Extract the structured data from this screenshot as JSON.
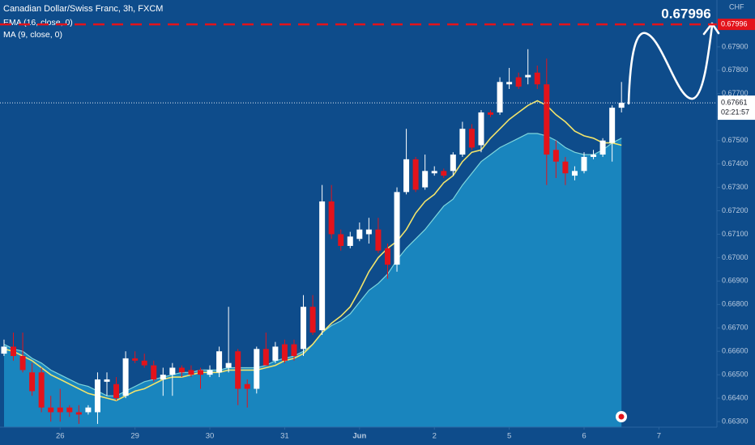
{
  "chart_data": {
    "type": "candlestick",
    "title": "Canadian Dollar/Swiss Franc, 3h, FXCM",
    "currency": "CHF",
    "up_color": "#ffffff",
    "down_color": "#e3131b",
    "candles": {
      "open": [
        0.6659,
        0.6662,
        0.6658,
        0.6651,
        0.6651,
        0.6636,
        0.6636,
        0.6636,
        0.6634,
        0.6634,
        0.6634,
        0.6647,
        0.6646,
        0.6641,
        0.6657,
        0.6656,
        0.6654,
        0.6648,
        0.665,
        0.6653,
        0.6652,
        0.6652,
        0.665,
        0.6651,
        0.6653,
        0.666,
        0.6646,
        0.6644,
        0.6661,
        0.6656,
        0.6663,
        0.6663,
        0.6661,
        0.6679,
        0.6669,
        0.6724,
        0.671,
        0.6705,
        0.6708,
        0.671,
        0.6712,
        0.6704,
        0.6697,
        0.6728,
        0.6742,
        0.673,
        0.6736,
        0.6737,
        0.6737,
        0.6744,
        0.6755,
        0.6748,
        0.6762,
        0.6762,
        0.6774,
        0.6777,
        0.6777,
        0.6779,
        0.6774,
        0.6746,
        0.6741,
        0.6735,
        0.6737,
        0.6743,
        0.6744,
        0.6749,
        0.6764
      ],
      "high": [
        0.6665,
        0.6668,
        0.6668,
        0.6655,
        0.6653,
        0.6641,
        0.6644,
        0.6637,
        0.6637,
        0.6637,
        0.6651,
        0.6651,
        0.6649,
        0.666,
        0.666,
        0.6659,
        0.6656,
        0.6653,
        0.6655,
        0.6654,
        0.6654,
        0.6653,
        0.6654,
        0.6662,
        0.6679,
        0.6661,
        0.6648,
        0.6662,
        0.6668,
        0.6664,
        0.6665,
        0.6665,
        0.6684,
        0.6684,
        0.6731,
        0.6731,
        0.6712,
        0.6711,
        0.6715,
        0.6717,
        0.6717,
        0.6706,
        0.673,
        0.6755,
        0.6743,
        0.6744,
        0.6739,
        0.6738,
        0.6745,
        0.6758,
        0.6757,
        0.6763,
        0.6763,
        0.6777,
        0.6781,
        0.6779,
        0.6789,
        0.6782,
        0.6785,
        0.675,
        0.6743,
        0.6739,
        0.6745,
        0.6746,
        0.6751,
        0.6765,
        0.6775
      ],
      "low": [
        0.6658,
        0.6656,
        0.6651,
        0.6641,
        0.6634,
        0.663,
        0.663,
        0.6632,
        0.6629,
        0.6633,
        0.6629,
        0.6641,
        0.6639,
        0.664,
        0.6655,
        0.6653,
        0.6647,
        0.6641,
        0.6641,
        0.6649,
        0.6649,
        0.6644,
        0.6649,
        0.6649,
        0.6651,
        0.6637,
        0.6636,
        0.6642,
        0.6654,
        0.6655,
        0.6655,
        0.6656,
        0.6658,
        0.6667,
        0.6667,
        0.6708,
        0.6703,
        0.6704,
        0.6707,
        0.6706,
        0.6702,
        0.6691,
        0.6694,
        0.6727,
        0.6728,
        0.6729,
        0.6735,
        0.6734,
        0.6735,
        0.6743,
        0.6746,
        0.6745,
        0.676,
        0.6761,
        0.6772,
        0.6772,
        0.6774,
        0.6772,
        0.6731,
        0.6734,
        0.6731,
        0.6733,
        0.6736,
        0.6742,
        0.6743,
        0.6741,
        0.6762
      ],
      "close": [
        0.6662,
        0.6658,
        0.6652,
        0.6643,
        0.6636,
        0.6634,
        0.6634,
        0.6634,
        0.6633,
        0.6636,
        0.6648,
        0.6648,
        0.664,
        0.6657,
        0.6656,
        0.6654,
        0.6648,
        0.665,
        0.6653,
        0.6651,
        0.665,
        0.665,
        0.6652,
        0.666,
        0.6655,
        0.6644,
        0.6644,
        0.6661,
        0.6654,
        0.6662,
        0.6656,
        0.6658,
        0.6679,
        0.6668,
        0.6724,
        0.671,
        0.6705,
        0.6709,
        0.6712,
        0.6712,
        0.6703,
        0.6697,
        0.6728,
        0.6742,
        0.6729,
        0.6737,
        0.6737,
        0.6735,
        0.6744,
        0.6755,
        0.6747,
        0.6762,
        0.6761,
        0.6775,
        0.6775,
        0.6773,
        0.6778,
        0.6774,
        0.6744,
        0.6741,
        0.6736,
        0.6737,
        0.6743,
        0.6744,
        0.675,
        0.6764,
        0.67661
      ]
    },
    "series": [
      {
        "name": "EMA (16, close, 0)",
        "style": "area",
        "color": "#7fd6dc",
        "fill": "#1b8cc3",
        "values": [
          0.6663,
          0.6661,
          0.666,
          0.6657,
          0.6655,
          0.6652,
          0.665,
          0.6648,
          0.6646,
          0.6645,
          0.6643,
          0.6641,
          0.6641,
          0.6643,
          0.6645,
          0.6647,
          0.6648,
          0.6649,
          0.665,
          0.6651,
          0.6651,
          0.6652,
          0.6652,
          0.6652,
          0.6653,
          0.6653,
          0.6653,
          0.6653,
          0.6654,
          0.6656,
          0.6657,
          0.6658,
          0.666,
          0.6663,
          0.6668,
          0.6671,
          0.6673,
          0.6676,
          0.6681,
          0.6686,
          0.6689,
          0.6693,
          0.6699,
          0.6704,
          0.6708,
          0.6712,
          0.6717,
          0.6722,
          0.6725,
          0.6731,
          0.6736,
          0.6741,
          0.6744,
          0.6747,
          0.6749,
          0.6751,
          0.6753,
          0.6753,
          0.6752,
          0.675,
          0.6747,
          0.6745,
          0.6744,
          0.6744,
          0.6746,
          0.6749,
          0.6751
        ]
      },
      {
        "name": "MA (9, close, 0)",
        "style": "line",
        "color": "#f2e46b",
        "values": [
          0.6661,
          0.666,
          0.6658,
          0.6656,
          0.6653,
          0.665,
          0.6648,
          0.6646,
          0.6644,
          0.6642,
          0.6641,
          0.664,
          0.6639,
          0.6641,
          0.6643,
          0.6644,
          0.6646,
          0.6648,
          0.6649,
          0.6649,
          0.665,
          0.6651,
          0.6651,
          0.6651,
          0.6652,
          0.6652,
          0.6652,
          0.6652,
          0.6653,
          0.6654,
          0.6656,
          0.6657,
          0.6659,
          0.6663,
          0.6668,
          0.6672,
          0.6675,
          0.6679,
          0.6686,
          0.6694,
          0.67,
          0.6704,
          0.6707,
          0.6712,
          0.6719,
          0.6724,
          0.6727,
          0.6732,
          0.6735,
          0.6741,
          0.6745,
          0.6746,
          0.6751,
          0.6755,
          0.6759,
          0.6762,
          0.6765,
          0.6767,
          0.6765,
          0.6761,
          0.6758,
          0.6754,
          0.6752,
          0.6751,
          0.6749,
          0.6749,
          0.6748
        ]
      }
    ],
    "ylim": [
      0.66276,
      0.681
    ],
    "yticks": [
      {
        "value": 0.663,
        "label": "0.66300"
      },
      {
        "value": 0.664,
        "label": "0.66400"
      },
      {
        "value": 0.665,
        "label": "0.66500"
      },
      {
        "value": 0.666,
        "label": "0.66600"
      },
      {
        "value": 0.667,
        "label": "0.66700"
      },
      {
        "value": 0.668,
        "label": "0.66800"
      },
      {
        "value": 0.669,
        "label": "0.66900"
      },
      {
        "value": 0.67,
        "label": "0.67000"
      },
      {
        "value": 0.671,
        "label": "0.67100"
      },
      {
        "value": 0.672,
        "label": "0.67200"
      },
      {
        "value": 0.673,
        "label": "0.67300"
      },
      {
        "value": 0.674,
        "label": "0.67400"
      },
      {
        "value": 0.675,
        "label": "0.67500"
      },
      {
        "value": 0.676,
        "label": "0.67600"
      },
      {
        "value": 0.677,
        "label": "0.67700"
      },
      {
        "value": 0.678,
        "label": "0.67800"
      },
      {
        "value": 0.679,
        "label": "0.67900"
      }
    ],
    "xlim": [
      -0.43,
      76.2
    ],
    "xticks": [
      {
        "value": 6,
        "label": "26"
      },
      {
        "value": 14,
        "label": "29"
      },
      {
        "value": 22,
        "label": "30"
      },
      {
        "value": 30,
        "label": "31"
      },
      {
        "value": 38,
        "label": "Jun"
      },
      {
        "value": 46,
        "label": "2"
      },
      {
        "value": 54,
        "label": "5"
      },
      {
        "value": 62,
        "label": "6"
      },
      {
        "value": 70,
        "label": "7"
      }
    ],
    "last_price": {
      "value": 0.67661,
      "label": "0.67661"
    },
    "countdown": "02:21:57",
    "target": {
      "value": 0.67996,
      "label": "0.67996",
      "color": "#e3131b"
    }
  }
}
